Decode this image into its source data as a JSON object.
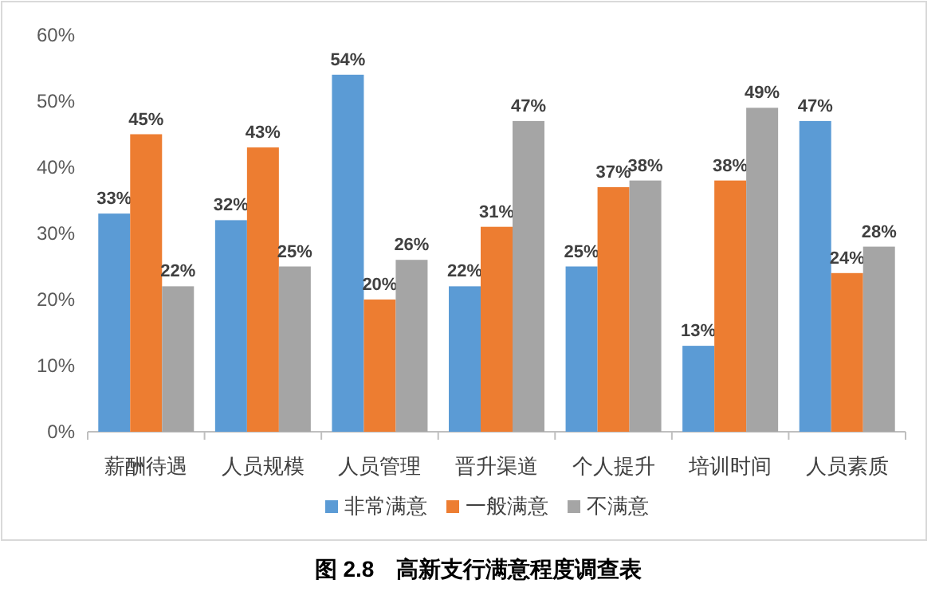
{
  "chart_data": {
    "type": "bar",
    "title": "图 2.8　高新支行满意程度调查表",
    "categories": [
      "薪酬待遇",
      "人员规模",
      "人员管理",
      "晋升渠道",
      "个人提升",
      "培训时间",
      "人员素质"
    ],
    "series": [
      {
        "name": "非常满意",
        "color": "#5b9bd5",
        "values": [
          33,
          32,
          54,
          22,
          25,
          13,
          47
        ],
        "value_labels": [
          "33%",
          "32%",
          "54%",
          "22%",
          "25%",
          "13%",
          "47%"
        ]
      },
      {
        "name": "一般满意",
        "color": "#ed7d31",
        "values": [
          45,
          43,
          20,
          31,
          37,
          38,
          24
        ],
        "value_labels": [
          "45%",
          "43%",
          "20%",
          "31%",
          "37%",
          "38%",
          "24%"
        ]
      },
      {
        "name": "不满意",
        "color": "#a5a5a5",
        "values": [
          22,
          25,
          26,
          47,
          38,
          49,
          28
        ],
        "value_labels": [
          "22%",
          "25%",
          "26%",
          "47%",
          "38%",
          "49%",
          "28%"
        ]
      }
    ],
    "ylim": [
      0,
      60
    ],
    "yticks": [
      {
        "value": 0,
        "label": "0%"
      },
      {
        "value": 10,
        "label": "10%"
      },
      {
        "value": 20,
        "label": "20%"
      },
      {
        "value": 30,
        "label": "30%"
      },
      {
        "value": 40,
        "label": "40%"
      },
      {
        "value": 50,
        "label": "50%"
      },
      {
        "value": 60,
        "label": "60%"
      }
    ],
    "legend": "bottom"
  }
}
